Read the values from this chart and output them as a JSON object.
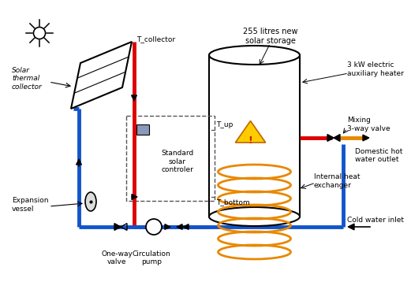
{
  "bg_color": "#ffffff",
  "red": "#dd0000",
  "blue": "#1155cc",
  "orange": "#e88800",
  "black": "#000000",
  "dash_color": "#555555",
  "labels": {
    "t_collector": "T_collector",
    "t_up": "T_up",
    "t_bottom": "T_bottom",
    "solar_thermal": "Solar\nthermal\ncollector",
    "expansion": "Expansion\nvessel",
    "one_way": "One-way\nvalve",
    "circulation": "Circulation\npump",
    "standard_solar": "Standard\nsolar\ncontroler",
    "storage": "255 litres new\nsolar storage",
    "aux_heater": "3 kW electric\nauxiliary heater",
    "mixing_valve": "Mixing\n3-way valve",
    "hot_outlet": "Domestic hot\nwater outlet",
    "internal_hx": "Internal heat\nexchanger",
    "cold_inlet": "Cold water inlet"
  }
}
